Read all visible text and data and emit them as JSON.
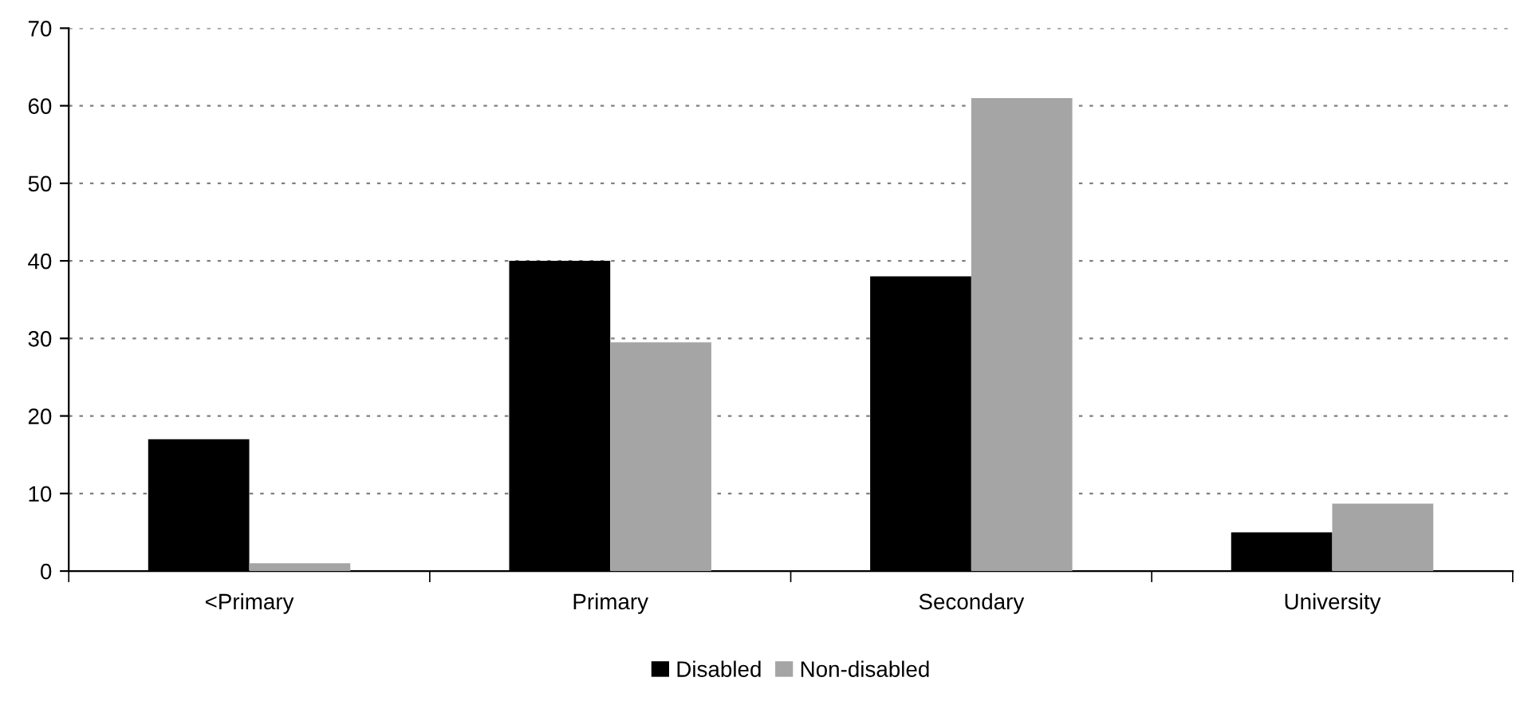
{
  "chart_data": {
    "type": "bar",
    "categories": [
      "<Primary",
      "Primary",
      "Secondary",
      "University"
    ],
    "series": [
      {
        "name": "Disabled",
        "color": "#000000",
        "values": [
          17,
          40,
          38,
          5
        ]
      },
      {
        "name": "Non-disabled",
        "color": "#a5a5a5",
        "values": [
          1,
          29.5,
          61,
          8.7
        ]
      }
    ],
    "ylim": [
      0,
      70
    ],
    "yticks": [
      0,
      10,
      20,
      30,
      40,
      50,
      60,
      70
    ],
    "grid": "y",
    "legend": "bottom"
  }
}
